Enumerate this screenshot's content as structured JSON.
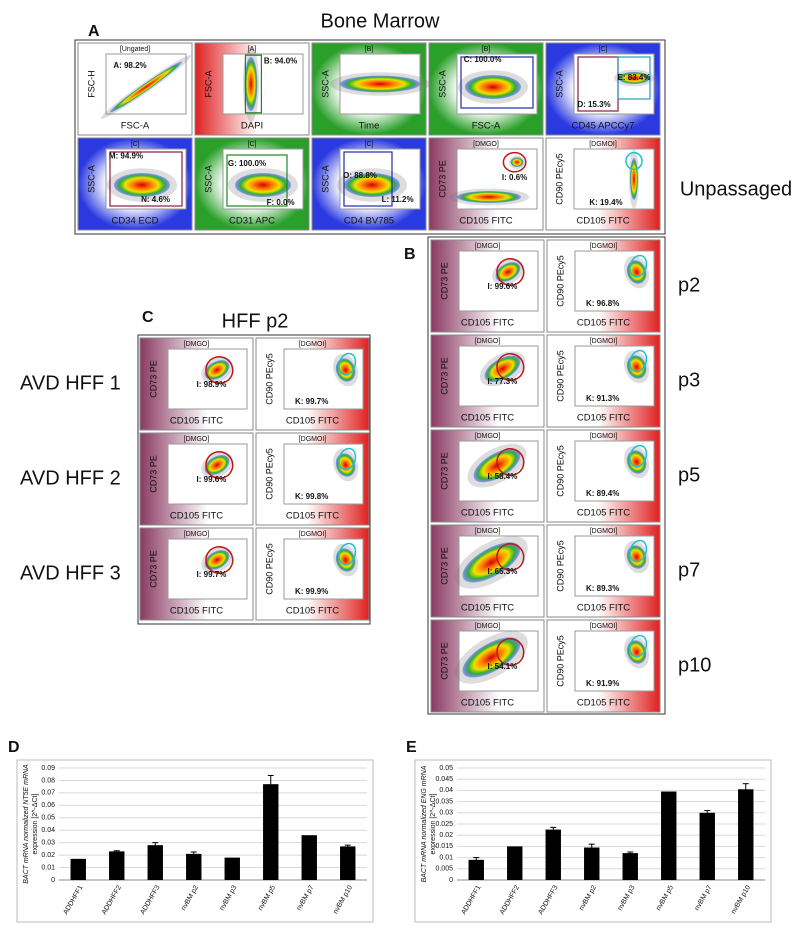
{
  "panel_a": {
    "label": "A",
    "title": "Bone Marrow",
    "side_label": "Unpassaged",
    "plots": [
      {
        "header": "[Ungated]",
        "y_label": "FSC-H",
        "x_label": "FSC-A",
        "gates": [
          "A: 98.2%"
        ]
      },
      {
        "header": "[A]",
        "y_label": "FSC-A",
        "x_label": "DAPI",
        "gates": [
          "B: 94.0%"
        ]
      },
      {
        "header": "[B]",
        "y_label": "SSC-A",
        "x_label": "Time",
        "gates": []
      },
      {
        "header": "[B]",
        "y_label": "SSC-A",
        "x_label": "FSC-A",
        "gates": [
          "C: 100.0%"
        ]
      },
      {
        "header": "[C]",
        "y_label": "SSC-A",
        "x_label": "CD45 APCCy7",
        "gates": [
          "D: 15.3%",
          "E: 83.4%"
        ]
      },
      {
        "header": "[C]",
        "y_label": "SSC-A",
        "x_label": "CD34 ECD",
        "gates": [
          "M: 94.9%",
          "N: 4.6%"
        ]
      },
      {
        "header": "[C]",
        "y_label": "SSC-A",
        "x_label": "CD31 APC",
        "gates": [
          "G: 100.0%",
          "F: 0.0%"
        ]
      },
      {
        "header": "[C]",
        "y_label": "SSC-A",
        "x_label": "CD4 BV785",
        "gates": [
          "O: 88.8%",
          "L: 11.2%"
        ]
      },
      {
        "header": "[DMGO]",
        "y_label": "CD73 PE",
        "x_label": "CD105 FITC",
        "gates": [
          "I: 0.6%"
        ]
      },
      {
        "header": "[DGMOI]",
        "y_label": "CD90 PEcy5",
        "x_label": "CD105 FITC",
        "gates": [
          "K: 19.4%"
        ]
      }
    ]
  },
  "panel_b": {
    "label": "B",
    "rows": [
      {
        "name": "p2",
        "plots": [
          {
            "header": "[DMGO]",
            "y_label": "CD73 PE",
            "x_label": "CD105 FITC",
            "gates": [
              "I: 99.6%"
            ]
          },
          {
            "header": "[DGMOI]",
            "y_label": "CD90 PEcy5",
            "x_label": "CD105 FITC",
            "gates": [
              "K: 96.8%"
            ]
          }
        ]
      },
      {
        "name": "p3",
        "plots": [
          {
            "header": "[DMGO]",
            "y_label": "CD73 PE",
            "x_label": "CD105 FITC",
            "gates": [
              "I: 77.3%"
            ]
          },
          {
            "header": "[DGMOI]",
            "y_label": "CD90 PEcy5",
            "x_label": "CD105 FITC",
            "gates": [
              "K: 91.3%"
            ]
          }
        ]
      },
      {
        "name": "p5",
        "plots": [
          {
            "header": "[DMGO]",
            "y_label": "CD73 PE",
            "x_label": "CD105 FITC",
            "gates": [
              "I: 58.4%"
            ]
          },
          {
            "header": "[DGMOI]",
            "y_label": "CD90 PEcy5",
            "x_label": "CD105 FITC",
            "gates": [
              "K: 89.4%"
            ]
          }
        ]
      },
      {
        "name": "p7",
        "plots": [
          {
            "header": "[DMGO]",
            "y_label": "CD73 PE",
            "x_label": "CD105 FITC",
            "gates": [
              "I: 65.3%"
            ]
          },
          {
            "header": "[DGMOI]",
            "y_label": "CD90 PEcy5",
            "x_label": "CD105 FITC",
            "gates": [
              "K: 89.3%"
            ]
          }
        ]
      },
      {
        "name": "p10",
        "plots": [
          {
            "header": "[DMGO]",
            "y_label": "CD73 PE",
            "x_label": "CD105 FITC",
            "gates": [
              "I: 54.1%"
            ]
          },
          {
            "header": "[DGMOI]",
            "y_label": "CD90 PEcy5",
            "x_label": "CD105 FITC",
            "gates": [
              "K: 91.9%"
            ]
          }
        ]
      }
    ]
  },
  "panel_c": {
    "label": "C",
    "title": "HFF p2",
    "rows": [
      {
        "name": "AVD HFF 1",
        "plots": [
          {
            "header": "[DMGO]",
            "y_label": "CD73 PE",
            "x_label": "CD105 FITC",
            "gates": [
              "I: 98.9%"
            ]
          },
          {
            "header": "[DGMOI]",
            "y_label": "CD90 PEcy5",
            "x_label": "CD105 FITC",
            "gates": [
              "K: 99.7%"
            ]
          }
        ]
      },
      {
        "name": "AVD HFF 2",
        "plots": [
          {
            "header": "[DMGO]",
            "y_label": "CD73 PE",
            "x_label": "CD105 FITC",
            "gates": [
              "I: 99.6%"
            ]
          },
          {
            "header": "[DGMOI]",
            "y_label": "CD90 PEcy5",
            "x_label": "CD105 FITC",
            "gates": [
              "K: 99.8%"
            ]
          }
        ]
      },
      {
        "name": "AVD HFF 3",
        "plots": [
          {
            "header": "[DMGO]",
            "y_label": "CD73 PE",
            "x_label": "CD105 FITC",
            "gates": [
              "I: 99.7%"
            ]
          },
          {
            "header": "[DGMOI]",
            "y_label": "CD90 PEcy5",
            "x_label": "CD105 FITC",
            "gates": [
              "K: 99.9%"
            ]
          }
        ]
      }
    ]
  },
  "chart_data": [
    {
      "type": "bar",
      "label": "D",
      "y_label": [
        "BACT mRNA normalized NT5E mRNA",
        "expression [2^-ΔCt]"
      ],
      "categories": [
        "ADDHFF1",
        "ADDHFF2",
        "ADDHFF3",
        "nvBM p2",
        "nvBM p3",
        "nvBM p5",
        "nvBM p7",
        "nvBM p10"
      ],
      "values": [
        0.017,
        0.023,
        0.028,
        0.021,
        0.018,
        0.077,
        0.036,
        0.027
      ],
      "errors": [
        0,
        0.0005,
        0.002,
        0.0015,
        0,
        0.007,
        0,
        0.001
      ],
      "color": "#000000",
      "ylim": [
        0,
        0.09
      ],
      "yticks": [
        0,
        0.01,
        0.02,
        0.03,
        0.04,
        0.05,
        0.06,
        0.07,
        0.08,
        0.09
      ],
      "grid": true
    },
    {
      "type": "bar",
      "label": "E",
      "y_label": [
        "BACT mRNA normalized ENG mRNA",
        "expression [2^-ΔCt]"
      ],
      "categories": [
        "ADDHFF1",
        "ADDHFF2",
        "ADDHFF3",
        "nvBM p2",
        "nvBM p3",
        "nvBM p5",
        "nvBM p7",
        "nvBM p10"
      ],
      "values": [
        0.009,
        0.015,
        0.0225,
        0.0145,
        0.012,
        0.0395,
        0.03,
        0.0405
      ],
      "errors": [
        0.001,
        0,
        0.001,
        0.0015,
        0.0005,
        0,
        0.001,
        0.0025
      ],
      "color": "#000000",
      "ylim": [
        0,
        0.05
      ],
      "yticks": [
        0,
        0.005,
        0.01,
        0.015,
        0.02,
        0.025,
        0.03,
        0.035,
        0.04,
        0.045,
        0.05
      ],
      "grid": true
    }
  ]
}
